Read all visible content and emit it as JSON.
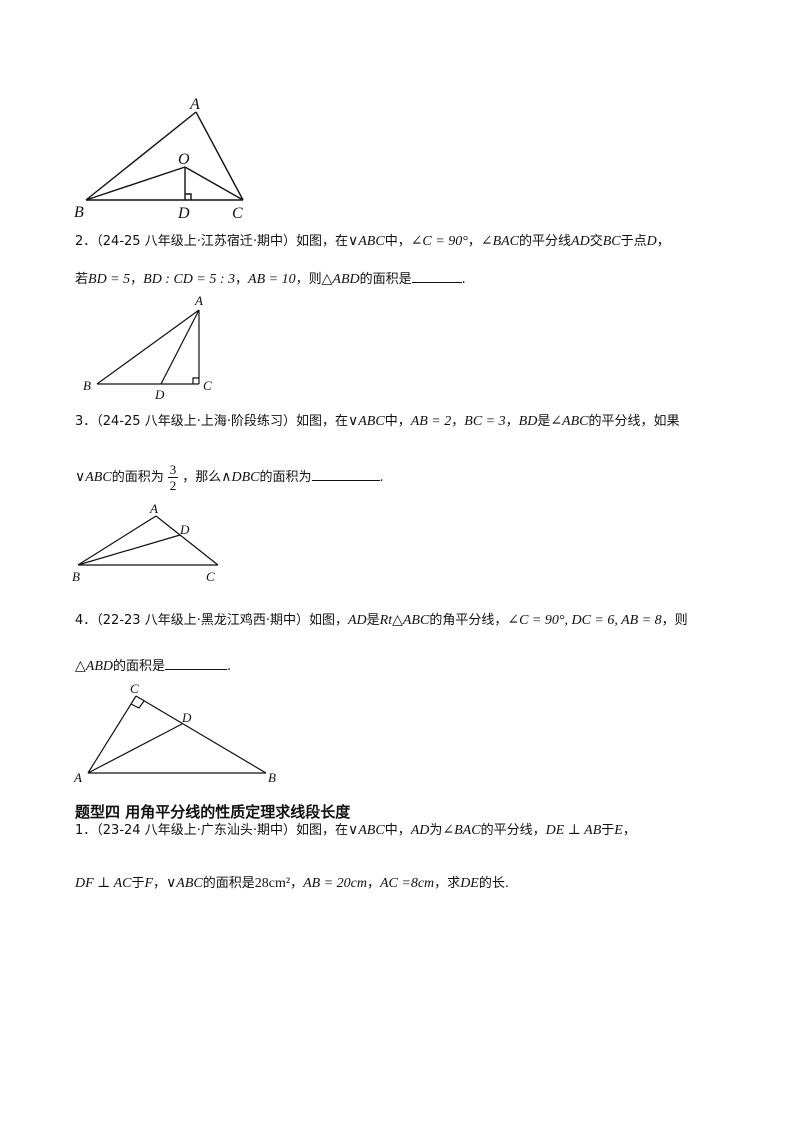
{
  "figures": {
    "fig1": {
      "A": "A",
      "O": "O",
      "B": "B",
      "D": "D",
      "C": "C"
    },
    "fig2": {
      "A": "A",
      "B": "B",
      "D": "D",
      "C": "C"
    },
    "fig3": {
      "A": "A",
      "D": "D",
      "B": "B",
      "C": "C"
    },
    "fig4": {
      "C": "C",
      "D": "D",
      "A": "A",
      "B": "B"
    }
  },
  "problems": {
    "p2": {
      "number": "2．",
      "source": "（24-25 八年级上·江苏宿迁·期中）",
      "t1": "如图，在",
      "m1": "∨ABC",
      "t2": "中，",
      "m2": "∠C = 90°",
      "t3": "，",
      "m3": "∠BAC",
      "t4": "的平分线",
      "m4": "AD",
      "t5": "交",
      "m5": "BC",
      "t6": "于点",
      "m6": "D",
      "t7": "，",
      "l2_t1": "若",
      "l2_m1": "BD = 5",
      "l2_t2": "，",
      "l2_m2": "BD : CD = 5 : 3",
      "l2_t3": "，",
      "l2_m3": "AB = 10",
      "l2_t4": "，则",
      "l2_m4": "△ABD",
      "l2_t5": "的面积是",
      "l2_end": "."
    },
    "p3": {
      "number": "3．",
      "source": "（24-25 八年级上·上海·阶段练习）",
      "t1": "如图，在",
      "m1": "∨ABC",
      "t2": "中，",
      "m2": "AB = 2",
      "t3": "，",
      "m3": "BC = 3",
      "t4": "，",
      "m4": "BD",
      "t5": "是",
      "m5": "∠ABC",
      "t6": "的平分线，如果",
      "l2_m1": "∨ABC",
      "l2_t1": "的面积为",
      "frac_num": "3",
      "frac_den": "2",
      "l2_t2": "，那么",
      "l2_m2": "∧DBC",
      "l2_t3": "的面积为",
      "l2_end": "."
    },
    "p4": {
      "number": "4．",
      "source": "（22-23 八年级上·黑龙江鸡西·期中）",
      "t1": "如图，",
      "m1": "AD",
      "t2": "是",
      "m2": "Rt△ABC",
      "t3": "的角平分线，",
      "m3": "∠C = 90°, DC = 6, AB = 8",
      "t4": "，则",
      "l2_m1": "△ABD",
      "l2_t1": "的面积是",
      "l2_end": "."
    },
    "section_title": "题型四  用角平分线的性质定理求线段长度",
    "q1": {
      "number": "1．",
      "source": "（23-24 八年级上·广东汕头·期中）",
      "t1": "如图，在",
      "m1": "∨ABC",
      "t2": "中，",
      "m2": "AD",
      "t3": "为",
      "m3": "∠BAC",
      "t4": "的平分线，",
      "m4": "DE ⊥ AB",
      "t5": "于",
      "m5": "E",
      "t6": "，",
      "l2_m1": "DF ⊥ AC",
      "l2_t1": "于",
      "l2_m2": "F",
      "l2_t2": "，",
      "l2_m3": "∨ABC",
      "l2_t3": "的面积是",
      "l2_m4": "28cm²",
      "l2_t4": "，",
      "l2_m5": "AB = 20cm",
      "l2_t5": "，",
      "l2_m6": "AC =8cm",
      "l2_t6": "，求",
      "l2_m7": "DE",
      "l2_t7": "的长."
    }
  }
}
